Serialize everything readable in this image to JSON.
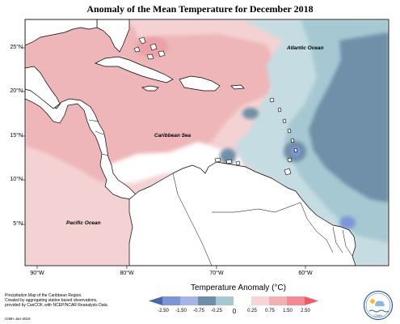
{
  "title": "Anomaly of the Mean Temperature for December 2018",
  "lat_labels": [
    "25°N",
    "20°N",
    "15°N",
    "10°N",
    "5°N"
  ],
  "lon_labels": [
    "90°W",
    "80°W",
    "70°W",
    "60°W"
  ],
  "ocean_labels": [
    "Atlantic Ocean",
    "Caribbean Sea",
    "Pacific Ocean"
  ],
  "legend": {
    "title": "Temperature Anomaly (°C)",
    "ticks": [
      "-2.50",
      "-1.50",
      "-0.75",
      "-0.25",
      "0",
      "0.25",
      "0.75",
      "1.50",
      "2.50"
    ],
    "colors": [
      "#4a67a8",
      "#7c95d6",
      "#a7b4e6",
      "#6f8fa9",
      "#a6c8d2",
      "#ffffff",
      "#f7d5d6",
      "#f0b0b4",
      "#f28a92",
      "#f05a66"
    ]
  },
  "credit_lines": [
    "Precipitation Map of the Caribbean Region.",
    "Created by aggregating station based observations,",
    "provided by CariCOF, with NCEP/NCAR Reanalysis Data."
  ],
  "credit_small": "CIMH Jan-2019",
  "logo_text": "CIMH",
  "colors": {
    "warm_light": "#f4d2d3",
    "warm_mid": "#eeb6b8",
    "warm_strong": "#eba1a6",
    "cool_light": "#c5dde2",
    "cool_mid": "#a6c8d2",
    "cool_strong": "#6f8fa9",
    "cool_blue": "#7c95d6",
    "land": "#ffffff",
    "coast": "#000000"
  }
}
